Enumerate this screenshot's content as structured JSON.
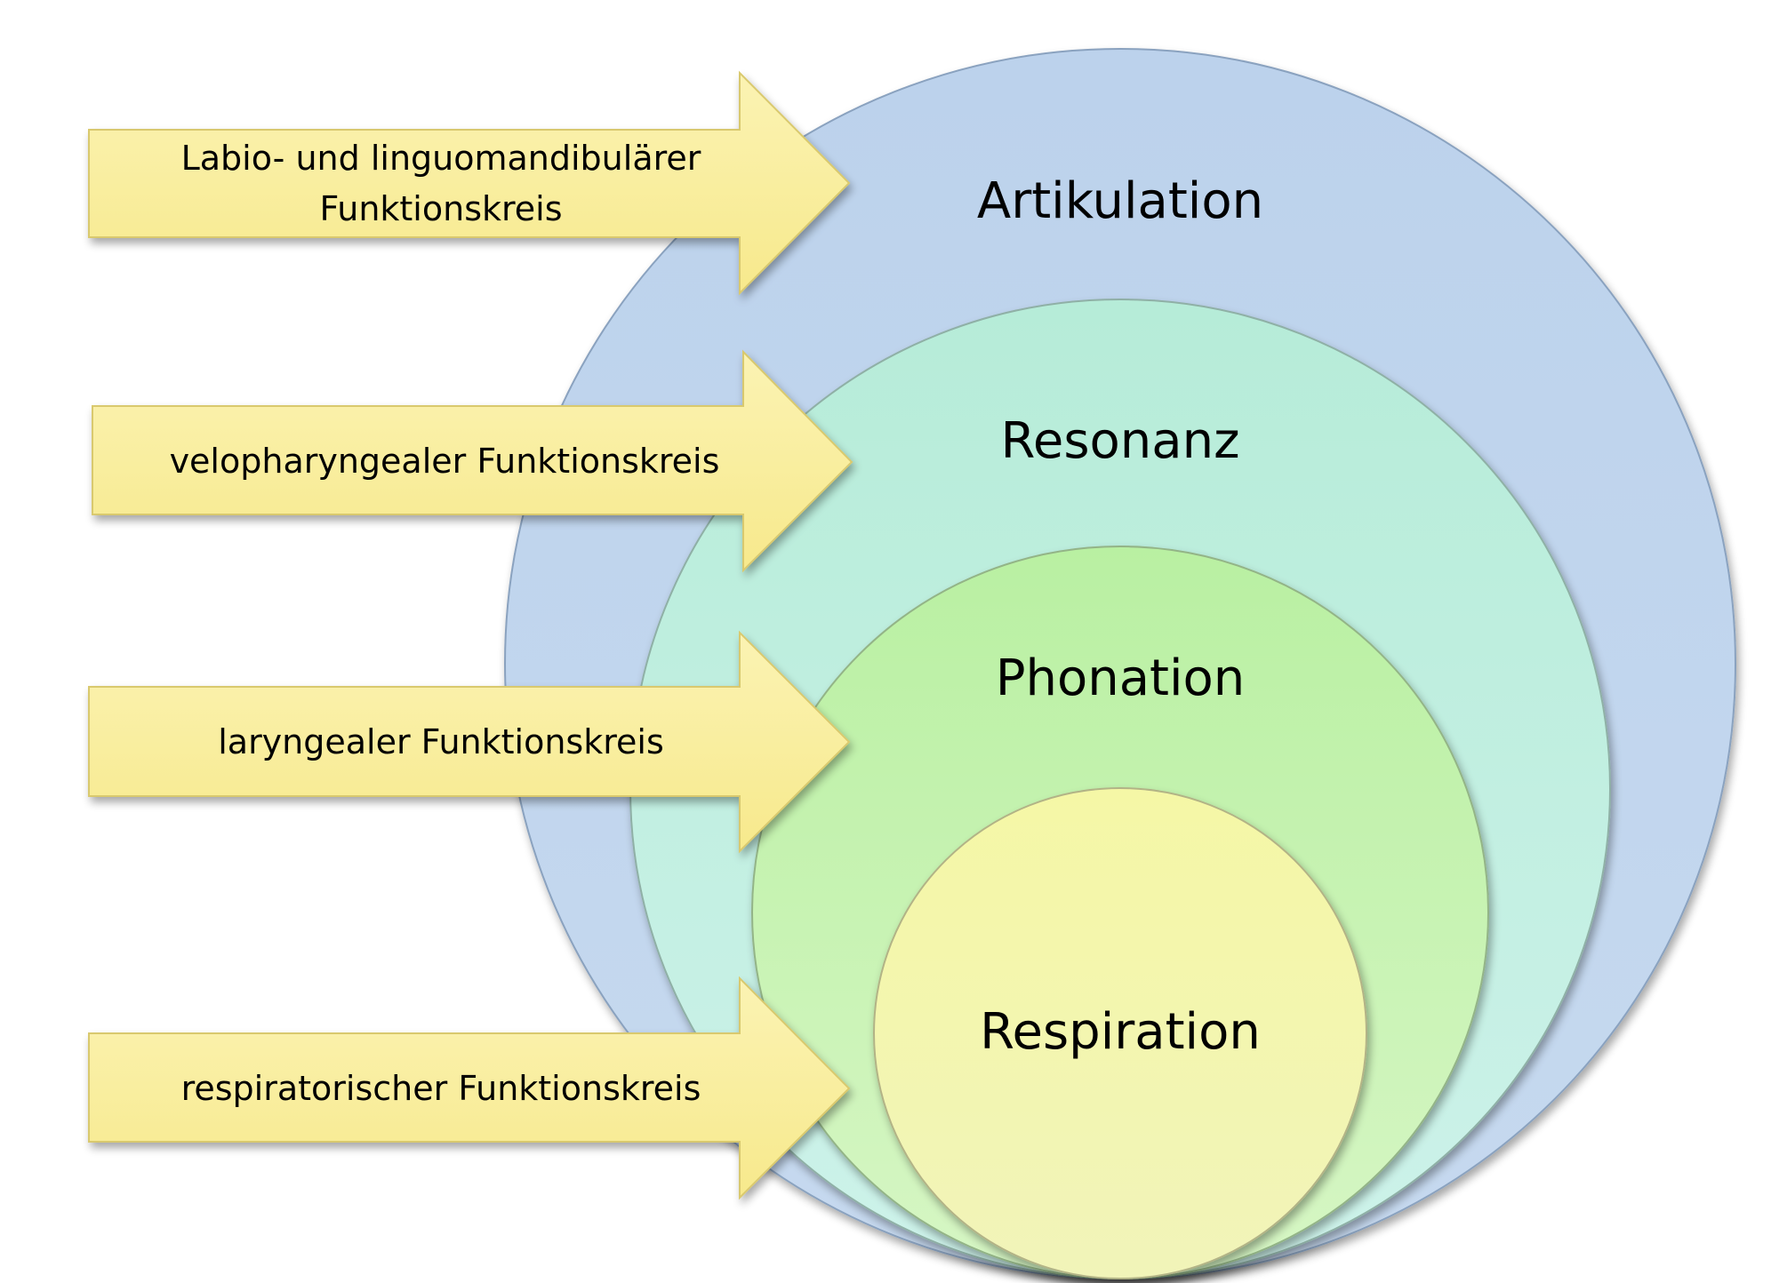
{
  "diagram": {
    "circles": [
      {
        "label": "Artikulation",
        "fill_top": "#bcd2ec",
        "fill_bottom": "#c6d9ef",
        "stroke": "#8aa2bf"
      },
      {
        "label": "Resonanz",
        "fill_top": "#b6ecd8",
        "fill_bottom": "#cdf2ea",
        "stroke": "#8fb0a6"
      },
      {
        "label": "Phonation",
        "fill_top": "#b9f0a2",
        "fill_bottom": "#d6f6c4",
        "stroke": "#93b487"
      },
      {
        "label": "Respiration",
        "fill_top": "#f5f7a6",
        "fill_bottom": "#f1f4b9",
        "stroke": "#b2b386"
      }
    ],
    "arrows": [
      {
        "lines": [
          "Labio- und linguomandibulärer",
          "Funktionskreis"
        ]
      },
      {
        "lines": [
          "velopharyngealer Funktionskreis"
        ]
      },
      {
        "lines": [
          "laryngealer Funktionskreis"
        ]
      },
      {
        "lines": [
          "respiratorischer Funktionskreis"
        ]
      }
    ],
    "arrow_fill_top": "#fbf3b3",
    "arrow_fill_bottom": "#f7e98c",
    "arrow_stroke": "#d9c96e"
  }
}
